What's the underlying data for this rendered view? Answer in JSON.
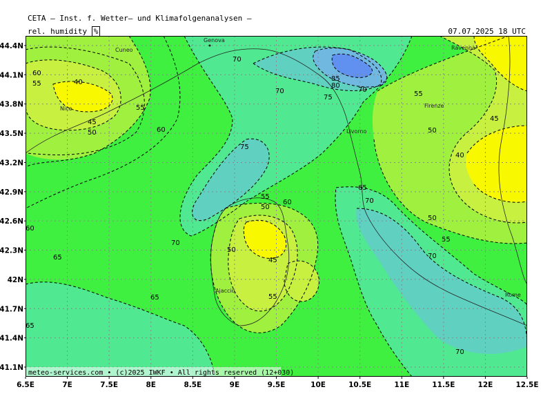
{
  "header": {
    "title": "CETA — Inst. f. Wetter— und Klimafolgenanalysen —",
    "param_label": "rel. humidity",
    "unit": "%",
    "datetime": "07.07.2025 18 UTC"
  },
  "footer": {
    "credit": "meteo-services.com • (c)2025 IWKF • All rights reserved (12+030)"
  },
  "axes": {
    "lat_labels": [
      "44.4N",
      "44.1N",
      "43.8N",
      "43.5N",
      "43.2N",
      "42.9N",
      "42.6N",
      "42.3N",
      "42N",
      "41.7N",
      "41.4N",
      "41.1N"
    ],
    "lon_labels": [
      "6.5E",
      "7E",
      "7.5E",
      "8E",
      "8.5E",
      "9E",
      "9.5E",
      "10E",
      "10.5E",
      "11E",
      "11.5E",
      "12E",
      "12.5E"
    ]
  },
  "colors": {
    "rh_40": "#f8f800",
    "rh_45_50": "#c8f040",
    "rh_55": "#a0f040",
    "rh_60_65": "#40f040",
    "rh_70": "#50e890",
    "rh_75": "#60d0c0",
    "rh_80": "#70b8e0",
    "rh_85": "#6090f0"
  },
  "cities": [
    "Genova",
    "Cuneo",
    "Nice",
    "Ravenna",
    "Firenze",
    "Livorno",
    "Ajaccio",
    "Rome"
  ],
  "contour_labels": [
    "60",
    "55",
    "40",
    "45",
    "50",
    "55",
    "60",
    "70",
    "85",
    "80",
    "75",
    "70",
    "70",
    "55",
    "50",
    "45",
    "40",
    "75",
    "65",
    "70",
    "50",
    "55",
    "60",
    "55",
    "50",
    "70",
    "60",
    "50",
    "45",
    "55",
    "70",
    "65",
    "65",
    "65",
    "70"
  ]
}
